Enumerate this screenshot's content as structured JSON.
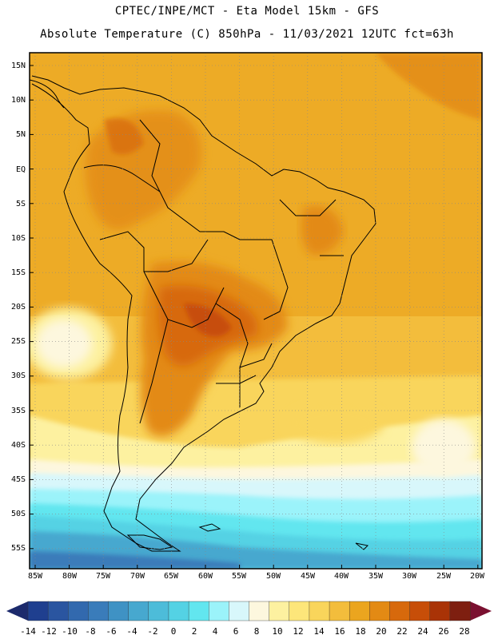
{
  "header": {
    "line1": "CPTEC/INPE/MCT -  Eta Model 15km - GFS",
    "line2": "Absolute Temperature (C) 850hPa - 11/03/2021 12UTC fct=63h"
  },
  "axes": {
    "lat_labels": [
      "15N",
      "10N",
      "5N",
      "EQ",
      "5S",
      "10S",
      "15S",
      "20S",
      "25S",
      "30S",
      "35S",
      "40S",
      "45S",
      "50S",
      "55S"
    ],
    "lon_labels": [
      "85W",
      "80W",
      "75W",
      "70W",
      "65W",
      "60W",
      "55W",
      "50W",
      "45W",
      "40W",
      "35W",
      "30W",
      "25W",
      "20W"
    ]
  },
  "colorbar": {
    "labels": [
      "-14",
      "-12",
      "-10",
      "-8",
      "-6",
      "-4",
      "-2",
      "0",
      "2",
      "4",
      "6",
      "8",
      "10",
      "12",
      "14",
      "16",
      "18",
      "20",
      "22",
      "24",
      "26",
      "28"
    ],
    "colors": [
      "#1f3f8f",
      "#2a55a0",
      "#3269ae",
      "#3a7cba",
      "#3f92c4",
      "#47a8cf",
      "#4dbcd9",
      "#54d2e4",
      "#62e6ef",
      "#9bf3fa",
      "#d8f7fb",
      "#fdf7de",
      "#fdf1a0",
      "#fde67a",
      "#f9d55b",
      "#f3bd3c",
      "#eba51f",
      "#e38a14",
      "#d7690c",
      "#c74e08",
      "#a93306",
      "#7e1f10"
    ],
    "under_color": "#1c2a6c",
    "over_color": "#7a1030"
  },
  "map_colors": {
    "ocean_warm": "#f3bd3c",
    "ocean_warmer": "#eba51f",
    "land_hot": "#e38a14",
    "land_hotter": "#d7690c",
    "cool_patch": "#fdf1a0",
    "coast_line": "#000000"
  }
}
